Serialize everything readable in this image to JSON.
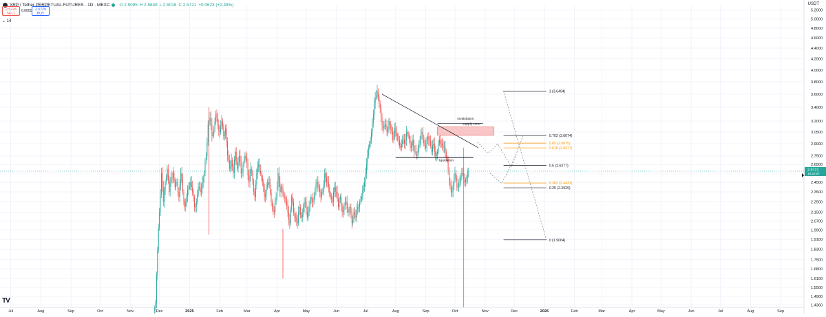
{
  "header": {
    "symbol": "XRP / Tether PERPETUAL FUTURES · 1D · MEXC",
    "open": "O 2.5095",
    "high": "H 2.5849",
    "low": "L 2.5018",
    "close": "C 2.5721",
    "change": "+0.0623 (+2.48%)",
    "sell_price": "2.5728",
    "sell_label": "SELL",
    "spread": "0.0001",
    "buy_price": "2.5729",
    "buy_label": "BUY",
    "volume_label": "14",
    "currency": "USDT"
  },
  "colors": {
    "up": "#26a69a",
    "down": "#ef5350",
    "fib": "#131722",
    "fib_orange": "#ff9800",
    "supply_zone": "#f8c6c6",
    "price_tag": "#26a69a"
  },
  "chart_data": {
    "type": "candlestick",
    "title": "XRP / Tether PERPETUAL FUTURES · 1D · MEXC",
    "y_scale": "log",
    "y_ticks": [
      "5.2000",
      "5.0000",
      "4.8000",
      "4.6000",
      "4.4000",
      "4.2000",
      "4.0000",
      "3.8000",
      "3.6000",
      "3.4000",
      "3.2000",
      "3.0500",
      "2.9000",
      "2.7500",
      "2.6500",
      "2.5500",
      "2.4500",
      "2.3500",
      "2.2500",
      "2.1500",
      "2.0700",
      "1.9900",
      "1.9100",
      "1.8300",
      "1.7500",
      "1.6800",
      "1.6100",
      "1.5500",
      "1.4900",
      "1.4360"
    ],
    "x_ticks": [
      "Jul",
      "Aug",
      "Sep",
      "Oct",
      "Nov",
      "Dec",
      "2025",
      "Feb",
      "Mar",
      "Apr",
      "May",
      "Jun",
      "Jul",
      "Aug",
      "Sep",
      "Oct",
      "Nov",
      "Dec",
      "2026",
      "Feb",
      "Mar",
      "Apr",
      "May",
      "Jun",
      "Jul",
      "Aug",
      "Sep"
    ],
    "bold_ticks": [
      "2025",
      "2026"
    ],
    "last_price": "2.5721",
    "last_timer": "10:22:07",
    "x_range": [
      "2024-06-20",
      "2026-09-25"
    ],
    "candles_start": "2024-11-26",
    "candles_close": [
      1.45,
      1.82,
      2.15,
      2.55,
      2.25,
      2.45,
      2.6,
      2.35,
      2.5,
      2.55,
      2.4,
      2.45,
      2.3,
      2.55,
      2.35,
      2.2,
      2.3,
      2.4,
      2.45,
      2.35,
      2.2,
      2.25,
      2.4,
      2.35,
      2.45,
      2.55,
      2.75,
      3.15,
      3.25,
      3.0,
      3.1,
      3.3,
      3.15,
      3.05,
      3.2,
      3.0,
      3.1,
      2.75,
      2.6,
      2.7,
      2.55,
      2.8,
      2.6,
      2.75,
      2.55,
      2.65,
      2.75,
      2.65,
      2.45,
      2.6,
      2.45,
      2.3,
      2.55,
      2.65,
      2.55,
      2.45,
      2.3,
      2.4,
      2.45,
      2.35,
      2.2,
      2.15,
      2.3,
      2.55,
      2.35,
      2.4,
      2.3,
      2.25,
      2.15,
      2.05,
      2.3,
      2.15,
      2.1,
      2.05,
      2.2,
      2.1,
      2.2,
      2.25,
      2.1,
      2.2,
      2.3,
      2.25,
      2.35,
      2.45,
      2.4,
      2.3,
      2.35,
      2.55,
      2.45,
      2.4,
      2.3,
      2.25,
      2.4,
      2.35,
      2.2,
      2.3,
      2.15,
      2.2,
      2.25,
      2.15,
      2.2,
      2.05,
      2.15,
      2.1,
      2.2,
      2.25,
      2.3,
      2.4,
      2.55,
      2.75,
      2.9,
      3.05,
      3.3,
      3.55,
      3.65,
      3.45,
      3.25,
      3.1,
      3.15,
      3.05,
      3.2,
      3.1,
      2.95,
      3.1,
      3.0,
      2.95,
      2.85,
      2.95,
      2.9,
      3.05,
      3.0,
      2.85,
      2.95,
      2.8,
      2.75,
      2.85,
      2.95,
      3.05,
      2.9,
      2.85,
      3.0,
      2.95,
      2.8,
      2.9,
      2.75,
      2.8,
      2.95,
      2.9,
      2.85,
      2.8,
      2.7,
      2.45,
      2.35,
      2.4,
      2.55,
      2.4,
      2.45,
      2.5,
      2.55,
      2.45,
      2.5,
      2.5721
    ],
    "wick_spikes": [
      {
        "date": "2025-01-21",
        "high": 3.4,
        "low": 1.95
      },
      {
        "date": "2025-04-07",
        "high": 2.0,
        "low": 1.61
      },
      {
        "date": "2025-10-10",
        "high": 2.85,
        "low": 1.25
      }
    ],
    "fib_levels": [
      {
        "ratio": "1",
        "price": 3.6494,
        "label": "1 (3.6494)",
        "orange": false
      },
      {
        "ratio": "0.702",
        "price": 3.0074,
        "label": "0.702 (3.0074)",
        "orange": false
      },
      {
        "ratio": "0.65",
        "price": 2.9075,
        "label": "0.65 (2.9075)",
        "orange": true
      },
      {
        "ratio": "0.618",
        "price": 2.8477,
        "label": "0.618 (2.8477)",
        "orange": true
      },
      {
        "ratio": "0.5",
        "price": 2.6377,
        "label": "0.5 (2.6377)",
        "orange": false
      },
      {
        "ratio": "0.382",
        "price": 2.4431,
        "label": "0.382 (2.4431)",
        "orange": true
      },
      {
        "ratio": "0.35",
        "price": 2.3929,
        "label": "0.35 (2.3929)",
        "orange": false
      },
      {
        "ratio": "0",
        "price": 1.9064,
        "label": "0 (1.9064)",
        "orange": false
      }
    ],
    "annotations": [
      {
        "text": "invalidation",
        "date": "2025-10-12",
        "price": 3.22
      },
      {
        "text": "supply zone",
        "date": "2025-10-18",
        "price": 3.15
      },
      {
        "text": "liquidation",
        "date": "2025-09-22",
        "price": 2.685
      }
    ],
    "supply_zone": {
      "from": "2025-09-13",
      "to": "2025-11-10",
      "top": 3.12,
      "bottom": 3.01
    },
    "trendline": {
      "from": [
        "2025-07-18",
        3.6
      ],
      "to": [
        "2025-10-25",
        2.85
      ]
    },
    "support": {
      "from": [
        "2025-08-01",
        2.73
      ],
      "to": [
        "2025-10-20",
        2.73
      ],
      "price": 2.73
    },
    "invalidation_line": {
      "from": [
        "2025-09-13",
        3.17
      ],
      "to": [
        "2025-10-30",
        3.17
      ],
      "price": 3.17
    },
    "projection_path_1": [
      [
        "2025-10-24",
        2.92
      ],
      [
        "2025-11-04",
        2.78
      ],
      [
        "2025-11-14",
        2.9
      ],
      [
        "2025-11-28",
        2.62
      ],
      [
        "2025-12-10",
        3.0
      ]
    ],
    "projection_path_2": [
      [
        "2025-11-06",
        2.55
      ],
      [
        "2025-11-18",
        2.44
      ],
      [
        "2025-12-03",
        2.76
      ]
    ],
    "fib_tool_line": {
      "from": [
        "2025-11-20",
        3.6494
      ],
      "to": [
        "2026-01-03",
        1.9064
      ]
    }
  }
}
